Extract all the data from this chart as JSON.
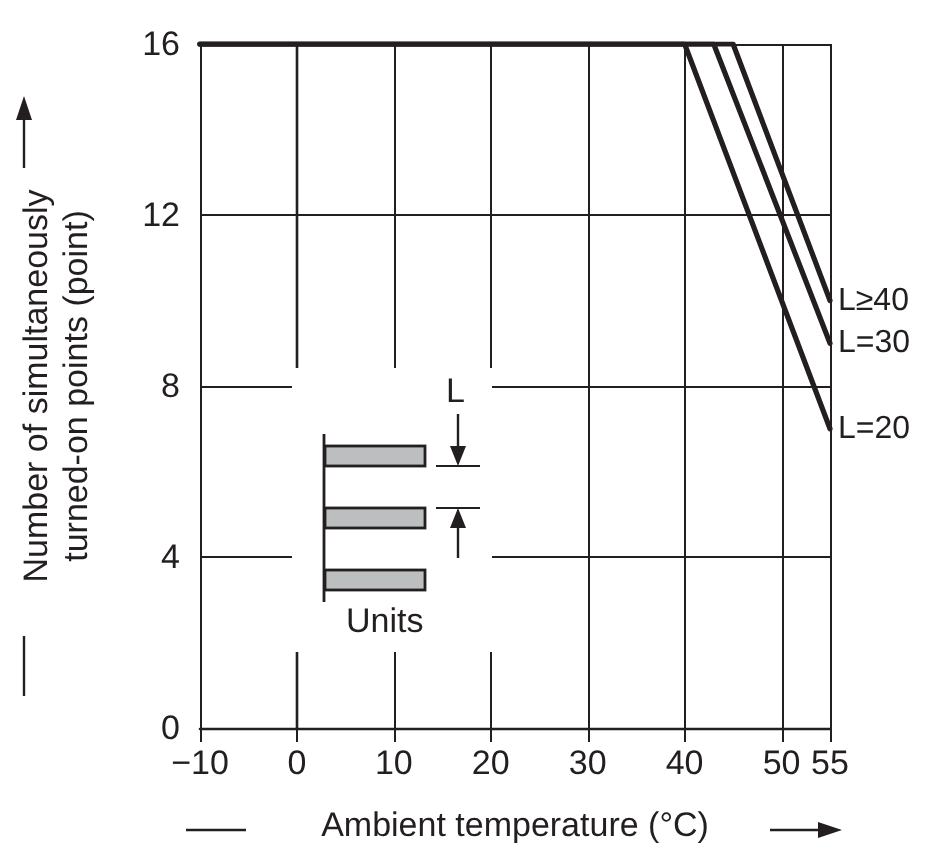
{
  "chart_data": {
    "type": "line",
    "xlabel": "Ambient temperature (°C)",
    "ylabel": "Number of simultaneously turned-on points (point)",
    "xlim": [
      -10,
      55
    ],
    "xticks": [
      {
        "value": -10,
        "label": "−10"
      },
      0,
      10,
      20,
      30,
      40,
      50,
      55
    ],
    "ylim": [
      0,
      16
    ],
    "yticks": [
      0,
      4,
      8,
      12,
      16
    ],
    "grid": true,
    "legend": false,
    "marker": "none",
    "line_style": "solid",
    "series": [
      {
        "name": "L≥40",
        "color": "#231f20",
        "x": [
          -10,
          45,
          55
        ],
        "values": [
          16,
          16,
          10
        ]
      },
      {
        "name": "L=30",
        "color": "#231f20",
        "x": [
          -10,
          43,
          55
        ],
        "values": [
          16,
          16,
          9
        ]
      },
      {
        "name": "L=20",
        "color": "#231f20",
        "x": [
          -10,
          40,
          55
        ],
        "values": [
          16,
          16,
          7
        ]
      }
    ],
    "annotations": [
      "L",
      "Units"
    ]
  }
}
